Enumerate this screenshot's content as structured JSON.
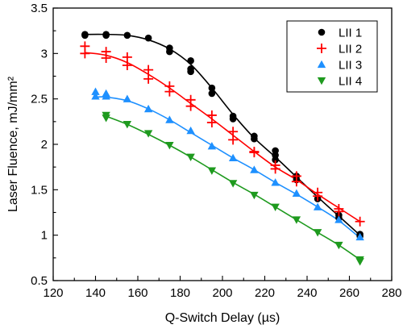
{
  "chart_data": {
    "type": "scatter",
    "title": "",
    "xlabel": "Q-Switch Delay (µs)",
    "ylabel": "Laser Fluence, mJ/mm²",
    "xlim": [
      120,
      280
    ],
    "ylim": [
      0.5,
      3.5
    ],
    "xticks": [
      120,
      140,
      160,
      180,
      200,
      220,
      240,
      260,
      280
    ],
    "yticks": [
      0.5,
      1,
      1.5,
      2,
      2.5,
      3,
      3.5
    ],
    "grid": false,
    "legend_position": "top-right",
    "series": [
      {
        "name": "LII 1",
        "color": "#000000",
        "marker": "circle",
        "points": [
          [
            135,
            3.21
          ],
          [
            135,
            3.2
          ],
          [
            145,
            3.21
          ],
          [
            145,
            3.2
          ],
          [
            155,
            3.2
          ],
          [
            165,
            3.17
          ],
          [
            175,
            3.06
          ],
          [
            175,
            3.02
          ],
          [
            185,
            2.92
          ],
          [
            185,
            2.83
          ],
          [
            185,
            2.8
          ],
          [
            195,
            2.62
          ],
          [
            195,
            2.56
          ],
          [
            205,
            2.31
          ],
          [
            205,
            2.28
          ],
          [
            215,
            2.09
          ],
          [
            215,
            2.06
          ],
          [
            225,
            1.93
          ],
          [
            225,
            1.88
          ],
          [
            225,
            1.83
          ],
          [
            235,
            1.65
          ],
          [
            235,
            1.61
          ],
          [
            245,
            1.4
          ],
          [
            255,
            1.22
          ],
          [
            255,
            1.19
          ],
          [
            265,
            1.01
          ],
          [
            265,
            0.99
          ]
        ],
        "fit": [
          [
            135,
            3.21
          ],
          [
            145,
            3.21
          ],
          [
            155,
            3.2
          ],
          [
            165,
            3.15
          ],
          [
            175,
            3.05
          ],
          [
            185,
            2.88
          ],
          [
            195,
            2.62
          ],
          [
            205,
            2.33
          ],
          [
            215,
            2.07
          ],
          [
            225,
            1.86
          ],
          [
            235,
            1.64
          ],
          [
            245,
            1.42
          ],
          [
            255,
            1.21
          ],
          [
            265,
            1.0
          ]
        ]
      },
      {
        "name": "LII 2",
        "color": "#ff0000",
        "marker": "plus",
        "points": [
          [
            135,
            3.08
          ],
          [
            135,
            3.0
          ],
          [
            145,
            3.02
          ],
          [
            145,
            2.95
          ],
          [
            155,
            2.96
          ],
          [
            155,
            2.87
          ],
          [
            165,
            2.82
          ],
          [
            165,
            2.72
          ],
          [
            175,
            2.64
          ],
          [
            175,
            2.58
          ],
          [
            185,
            2.49
          ],
          [
            185,
            2.42
          ],
          [
            195,
            2.32
          ],
          [
            195,
            2.24
          ],
          [
            205,
            2.14
          ],
          [
            205,
            2.05
          ],
          [
            215,
            1.92
          ],
          [
            215,
            1.91
          ],
          [
            225,
            1.77
          ],
          [
            225,
            1.73
          ],
          [
            235,
            1.65
          ],
          [
            235,
            1.59
          ],
          [
            245,
            1.47
          ],
          [
            245,
            1.43
          ],
          [
            255,
            1.29
          ],
          [
            255,
            1.26
          ],
          [
            265,
            1.15
          ]
        ],
        "fit": [
          [
            135,
            3.01
          ],
          [
            145,
            2.98
          ],
          [
            155,
            2.9
          ],
          [
            165,
            2.77
          ],
          [
            175,
            2.62
          ],
          [
            185,
            2.45
          ],
          [
            195,
            2.28
          ],
          [
            205,
            2.1
          ],
          [
            215,
            1.92
          ],
          [
            225,
            1.75
          ],
          [
            235,
            1.61
          ],
          [
            245,
            1.45
          ],
          [
            255,
            1.3
          ],
          [
            265,
            1.15
          ]
        ]
      },
      {
        "name": "LII 3",
        "color": "#1e90ff",
        "marker": "triangle-up",
        "points": [
          [
            140,
            2.58
          ],
          [
            140,
            2.53
          ],
          [
            145,
            2.56
          ],
          [
            145,
            2.53
          ],
          [
            155,
            2.5
          ],
          [
            165,
            2.39
          ],
          [
            175,
            2.27
          ],
          [
            185,
            2.15
          ],
          [
            195,
            1.98
          ],
          [
            205,
            1.85
          ],
          [
            215,
            1.72
          ],
          [
            225,
            1.58
          ],
          [
            235,
            1.46
          ],
          [
            245,
            1.31
          ],
          [
            255,
            1.17
          ],
          [
            265,
            0.98
          ]
        ],
        "fit": [
          [
            140,
            2.52
          ],
          [
            145,
            2.52
          ],
          [
            155,
            2.48
          ],
          [
            165,
            2.39
          ],
          [
            175,
            2.27
          ],
          [
            185,
            2.13
          ],
          [
            195,
            1.99
          ],
          [
            205,
            1.85
          ],
          [
            215,
            1.72
          ],
          [
            225,
            1.58
          ],
          [
            235,
            1.45
          ],
          [
            245,
            1.31
          ],
          [
            255,
            1.16
          ],
          [
            265,
            0.97
          ]
        ]
      },
      {
        "name": "LII 4",
        "color": "#1e9a1e",
        "marker": "triangle-down",
        "points": [
          [
            145,
            2.32
          ],
          [
            145,
            2.29
          ],
          [
            155,
            2.22
          ],
          [
            165,
            2.12
          ],
          [
            175,
            1.99
          ],
          [
            185,
            1.86
          ],
          [
            195,
            1.71
          ],
          [
            205,
            1.57
          ],
          [
            215,
            1.44
          ],
          [
            225,
            1.31
          ],
          [
            235,
            1.17
          ],
          [
            245,
            1.03
          ],
          [
            255,
            0.89
          ],
          [
            265,
            0.73
          ],
          [
            265,
            0.71
          ]
        ],
        "fit": [
          [
            145,
            2.31
          ],
          [
            155,
            2.22
          ],
          [
            165,
            2.11
          ],
          [
            175,
            1.99
          ],
          [
            185,
            1.86
          ],
          [
            195,
            1.72
          ],
          [
            205,
            1.58
          ],
          [
            215,
            1.45
          ],
          [
            225,
            1.31
          ],
          [
            235,
            1.17
          ],
          [
            245,
            1.03
          ],
          [
            255,
            0.89
          ],
          [
            265,
            0.73
          ]
        ]
      }
    ]
  }
}
